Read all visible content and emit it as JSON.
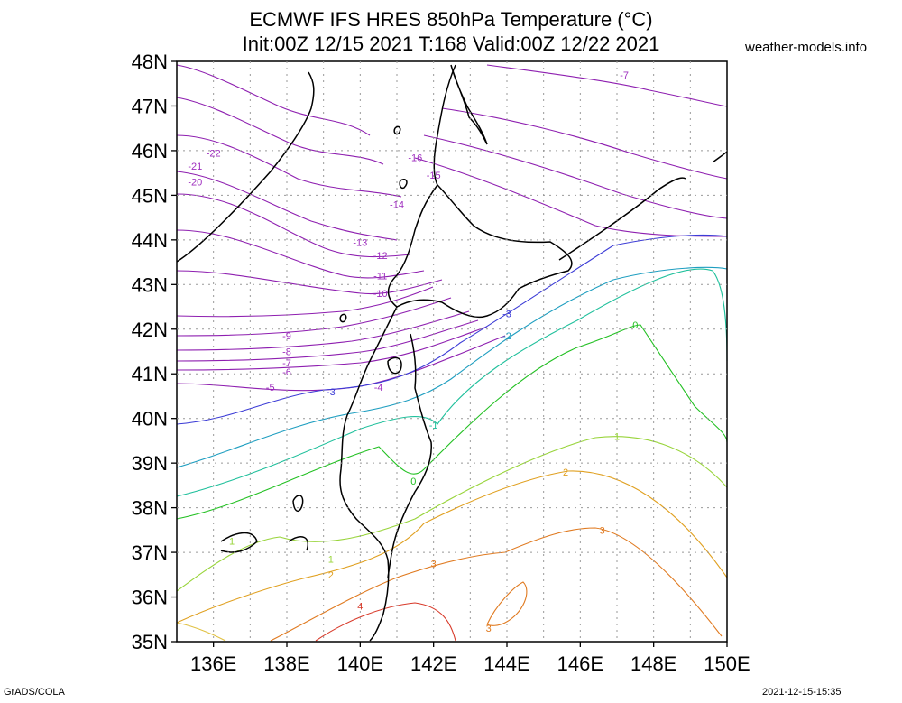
{
  "title": {
    "line1": "ECMWF IFS HRES 850hPa Temperature (°C)",
    "line2": "Init:00Z 12/15 2021 T:168 Valid:00Z 12/22 2021"
  },
  "source": "weather-models.info",
  "footer": {
    "software": "GrADS/COLA",
    "generated": "2021-12-15-15:35"
  },
  "map": {
    "lon_range": [
      135,
      150
    ],
    "lat_range": [
      35,
      48
    ],
    "lat_labels": [
      "35N",
      "36N",
      "37N",
      "38N",
      "39N",
      "40N",
      "41N",
      "42N",
      "43N",
      "44N",
      "45N",
      "46N",
      "47N",
      "48N"
    ],
    "lon_labels": [
      "136E",
      "138E",
      "140E",
      "142E",
      "144E",
      "146E",
      "148E",
      "150E"
    ],
    "contour_labels": [
      {
        "text": "-22",
        "lon": 136.0,
        "lat": 45.95,
        "color": "#9f2fbf"
      },
      {
        "text": "-21",
        "lon": 135.5,
        "lat": 45.65,
        "color": "#9f2fbf"
      },
      {
        "text": "-20",
        "lon": 135.5,
        "lat": 45.3,
        "color": "#9f2fbf"
      },
      {
        "text": "-16",
        "lon": 141.5,
        "lat": 45.85,
        "color": "#9f2fbf"
      },
      {
        "text": "-15",
        "lon": 142.0,
        "lat": 45.45,
        "color": "#9f2fbf"
      },
      {
        "text": "-14",
        "lon": 141.0,
        "lat": 44.8,
        "color": "#9f2fbf"
      },
      {
        "text": "-13",
        "lon": 140.0,
        "lat": 43.95,
        "color": "#9f2fbf"
      },
      {
        "text": "-12",
        "lon": 140.55,
        "lat": 43.65,
        "color": "#9f2fbf"
      },
      {
        "text": "-11",
        "lon": 140.55,
        "lat": 43.2,
        "color": "#9f2fbf"
      },
      {
        "text": "-10",
        "lon": 140.55,
        "lat": 42.8,
        "color": "#9f2fbf"
      },
      {
        "text": "-9",
        "lon": 138.0,
        "lat": 41.85,
        "color": "#9f2fbf"
      },
      {
        "text": "-8",
        "lon": 138.0,
        "lat": 41.5,
        "color": "#9f2fbf"
      },
      {
        "text": "-7",
        "lon": 138.0,
        "lat": 41.25,
        "color": "#9f2fbf"
      },
      {
        "text": "-6",
        "lon": 138.0,
        "lat": 41.05,
        "color": "#9f2fbf"
      },
      {
        "text": "-5",
        "lon": 137.55,
        "lat": 40.7,
        "color": "#9f2fbf"
      },
      {
        "text": "-4",
        "lon": 140.5,
        "lat": 40.7,
        "color": "#9f2fbf"
      },
      {
        "text": "-3",
        "lon": 139.2,
        "lat": 40.6,
        "color": "#3c3cd6"
      },
      {
        "text": "-3",
        "lon": 144.0,
        "lat": 42.35,
        "color": "#3c3cd6"
      },
      {
        "text": "-2",
        "lon": 144.0,
        "lat": 41.85,
        "color": "#1e9ec0"
      },
      {
        "text": "-1",
        "lon": 142.0,
        "lat": 39.85,
        "color": "#20c09c"
      },
      {
        "text": "0",
        "lon": 141.45,
        "lat": 38.6,
        "color": "#22c022"
      },
      {
        "text": "0",
        "lon": 147.5,
        "lat": 42.1,
        "color": "#22c022"
      },
      {
        "text": "-7",
        "lon": 147.2,
        "lat": 47.7,
        "color": "#9f2fbf"
      },
      {
        "text": "1",
        "lon": 136.5,
        "lat": 37.25,
        "color": "#98d43a"
      },
      {
        "text": "1",
        "lon": 139.2,
        "lat": 36.85,
        "color": "#98d43a"
      },
      {
        "text": "1",
        "lon": 147.0,
        "lat": 39.6,
        "color": "#98d43a"
      },
      {
        "text": "2",
        "lon": 139.2,
        "lat": 36.5,
        "color": "#e0a020"
      },
      {
        "text": "2",
        "lon": 145.6,
        "lat": 38.8,
        "color": "#e0a020"
      },
      {
        "text": "3",
        "lon": 142.0,
        "lat": 36.75,
        "color": "#e07a20"
      },
      {
        "text": "3",
        "lon": 146.6,
        "lat": 37.5,
        "color": "#e07a20"
      },
      {
        "text": "3",
        "lon": 143.5,
        "lat": 35.3,
        "color": "#e07a20"
      },
      {
        "text": "4",
        "lon": 140.0,
        "lat": 35.8,
        "color": "#d83a2a"
      }
    ]
  }
}
